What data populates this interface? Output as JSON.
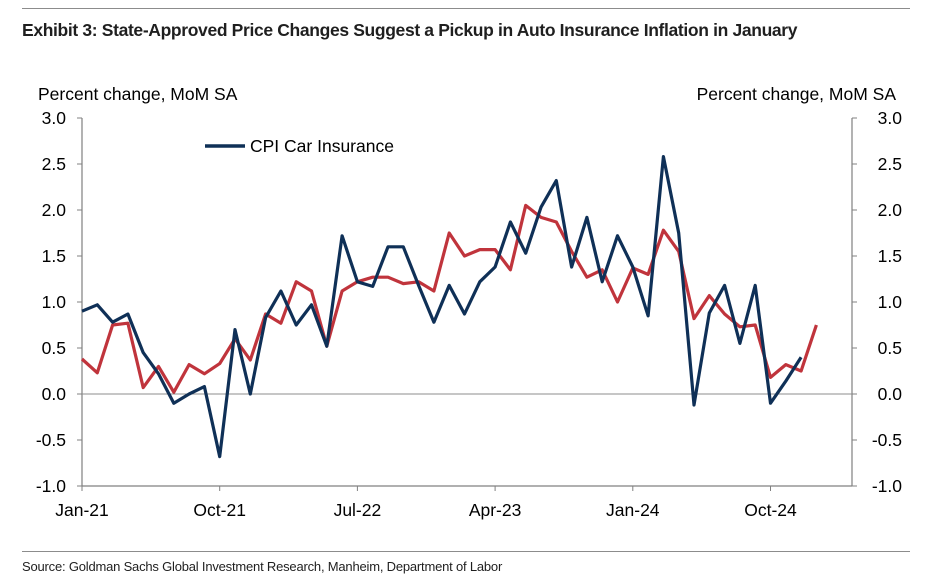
{
  "title": "Exhibit 3: State-Approved Price Changes Suggest a Pickup in Auto Insurance Inflation in January",
  "source": "Source: Goldman Sachs Global Investment Research, Manheim, Department of Labor",
  "colors": {
    "cpi": "#0f3057",
    "approved": "#c0343c",
    "axis": "#808080",
    "zero": "#8c8c8c"
  },
  "chart_data": {
    "type": "line",
    "title": "Exhibit 3: State-Approved Price Changes Suggest a Pickup in Auto Insurance Inflation in January",
    "ylabel_left": "Percent change, MoM SA",
    "ylabel_right": "Percent change, MoM SA",
    "ylim": [
      -1.0,
      3.0
    ],
    "yticks": [
      "3.0",
      "2.5",
      "2.0",
      "1.5",
      "1.0",
      "0.5",
      "0.0",
      "-0.5",
      "-1.0"
    ],
    "xticks": [
      "Jan-21",
      "Oct-21",
      "Jul-22",
      "Apr-23",
      "Jan-24",
      "Oct-24"
    ],
    "x": [
      "2021-01",
      "2021-02",
      "2021-03",
      "2021-04",
      "2021-05",
      "2021-06",
      "2021-07",
      "2021-08",
      "2021-09",
      "2021-10",
      "2021-11",
      "2021-12",
      "2022-01",
      "2022-02",
      "2022-03",
      "2022-04",
      "2022-05",
      "2022-06",
      "2022-07",
      "2022-08",
      "2022-09",
      "2022-10",
      "2022-11",
      "2022-12",
      "2023-01",
      "2023-02",
      "2023-03",
      "2023-04",
      "2023-05",
      "2023-06",
      "2023-07",
      "2023-08",
      "2023-09",
      "2023-10",
      "2023-11",
      "2023-12",
      "2024-01",
      "2024-02",
      "2024-03",
      "2024-04",
      "2024-05",
      "2024-06",
      "2024-07",
      "2024-08",
      "2024-09",
      "2024-10",
      "2024-11",
      "2024-12",
      "2025-01"
    ],
    "legend": [
      "CPI Car Insurance"
    ],
    "legend_position": "top-left",
    "grid": false,
    "series": [
      {
        "name": "CPI Car Insurance",
        "color": "#0f3057",
        "values": [
          0.9,
          0.97,
          0.78,
          0.87,
          0.45,
          0.22,
          -0.1,
          0.0,
          0.08,
          -0.68,
          0.7,
          0.0,
          0.83,
          1.12,
          0.75,
          0.97,
          0.52,
          1.72,
          1.22,
          1.17,
          1.6,
          1.6,
          1.18,
          0.78,
          1.18,
          0.87,
          1.22,
          1.38,
          1.87,
          1.53,
          2.03,
          2.32,
          1.38,
          1.92,
          1.22,
          1.72,
          1.38,
          0.85,
          2.58,
          1.75,
          -0.12,
          0.88,
          1.18,
          0.55,
          1.18,
          -0.1,
          0.14,
          0.4,
          null
        ]
      },
      {
        "values": [
          0.38,
          0.23,
          0.75,
          0.77,
          0.07,
          0.3,
          0.02,
          0.32,
          0.22,
          0.33,
          0.6,
          0.37,
          0.87,
          0.77,
          1.22,
          1.12,
          0.52,
          1.12,
          1.22,
          1.27,
          1.27,
          1.2,
          1.22,
          1.12,
          1.75,
          1.5,
          1.57,
          1.57,
          1.35,
          2.05,
          1.92,
          1.87,
          1.55,
          1.27,
          1.35,
          1.0,
          1.37,
          1.3,
          1.78,
          1.55,
          0.82,
          1.07,
          0.87,
          0.73,
          0.75,
          0.18,
          0.32,
          0.25,
          0.75
        ]
      }
    ]
  }
}
